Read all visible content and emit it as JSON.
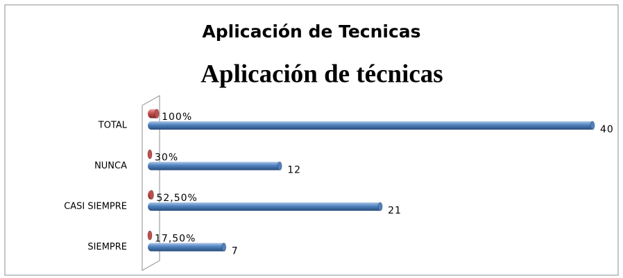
{
  "chart_data": {
    "type": "bar",
    "orientation": "horizontal",
    "title": "Aplicación de Tecnicas",
    "subtitle": "Aplicación de técnicas",
    "categories": [
      "TOTAL",
      "NUNCA",
      "CASI SIEMPRE",
      "SIEMPRE"
    ],
    "series": [
      {
        "color": "#c0504d",
        "values": [
          1,
          0.3,
          0.525,
          0.175
        ],
        "value_labels": [
          "100%",
          "30%",
          "52,50%",
          "17,50%"
        ]
      },
      {
        "color": "#4f81bd",
        "values": [
          40,
          12,
          21,
          7
        ]
      }
    ],
    "xlim": [
      0,
      40
    ]
  }
}
